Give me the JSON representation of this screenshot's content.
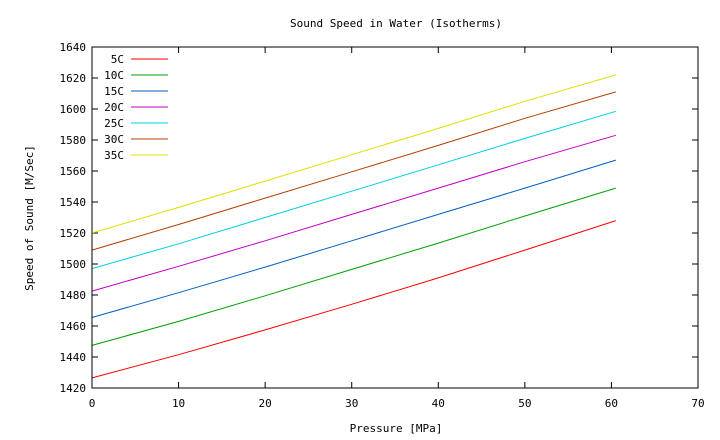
{
  "chart_data": {
    "type": "line",
    "title": "Sound Speed in Water (Isotherms)",
    "xlabel": "Pressure [MPa]",
    "ylabel": "Speed of Sound [M/Sec]",
    "xlim": [
      0,
      70
    ],
    "ylim": [
      1420,
      1640
    ],
    "xticks": [
      "0",
      "10",
      "20",
      "30",
      "40",
      "50",
      "60",
      "70"
    ],
    "yticks": [
      "1420",
      "1440",
      "1460",
      "1480",
      "1500",
      "1520",
      "1540",
      "1560",
      "1580",
      "1600",
      "1620",
      "1640"
    ],
    "grid": false,
    "legend_position": "top-left",
    "x": [
      0,
      10,
      20,
      30,
      40,
      50,
      60.5
    ],
    "series": [
      {
        "name": "5C",
        "color": "#ff0000",
        "values": [
          1426.5,
          1441.5,
          1457.5,
          1474.0,
          1491.0,
          1509.0,
          1528.0
        ]
      },
      {
        "name": "10C",
        "color": "#00a000",
        "values": [
          1447.5,
          1463.0,
          1479.5,
          1496.5,
          1513.5,
          1531.0,
          1549.0
        ]
      },
      {
        "name": "15C",
        "color": "#0060c0",
        "values": [
          1465.5,
          1481.5,
          1498.0,
          1515.0,
          1532.0,
          1549.0,
          1567.0
        ]
      },
      {
        "name": "20C",
        "color": "#c000c0",
        "values": [
          1482.5,
          1498.5,
          1515.0,
          1532.0,
          1549.0,
          1566.0,
          1583.0
        ]
      },
      {
        "name": "25C",
        "color": "#00d0e0",
        "values": [
          1497.0,
          1513.0,
          1530.0,
          1547.0,
          1564.0,
          1581.0,
          1598.5
        ]
      },
      {
        "name": "30C",
        "color": "#b04000",
        "values": [
          1509.0,
          1525.5,
          1542.5,
          1559.5,
          1576.5,
          1594.0,
          1611.0
        ]
      },
      {
        "name": "35C",
        "color": "#e0e000",
        "values": [
          1520.0,
          1536.5,
          1553.5,
          1570.5,
          1587.5,
          1605.0,
          1622.0
        ]
      }
    ]
  }
}
